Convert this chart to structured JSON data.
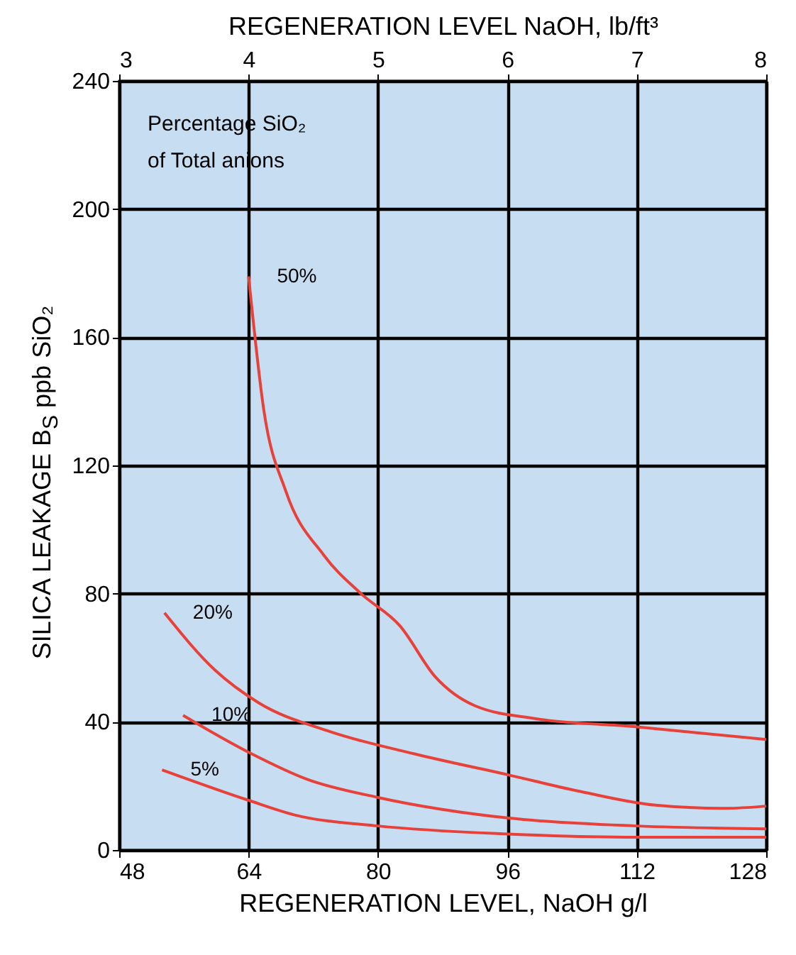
{
  "chart_data": {
    "type": "line",
    "xlabel": "REGENERATION LEVEL, NaOH g/l",
    "x2label": "REGENERATION LEVEL NaOH, lb/ft³",
    "ylabel": "SILICA LEAKAGE B$_{S}$ ppb SiO₂",
    "xlim": [
      48,
      128
    ],
    "xticks": [
      48,
      64,
      80,
      96,
      112,
      128
    ],
    "x2lim": [
      3,
      8
    ],
    "x2ticks": [
      3,
      4,
      5,
      6,
      7,
      8
    ],
    "ylim": [
      0,
      240
    ],
    "yticks": [
      0,
      40,
      80,
      120,
      160,
      200,
      240
    ],
    "grid": true,
    "series": [
      {
        "name": "50%",
        "color": "#e8413a",
        "x": [
          64,
          65.9,
          68.6,
          73.3,
          77.9,
          82.7,
          87.1,
          92,
          99.4,
          111.6,
          128
        ],
        "values": [
          179,
          137,
          112,
          92,
          80,
          70,
          54,
          45,
          41,
          38.5,
          34.5
        ]
      },
      {
        "name": "20%",
        "color": "#e8413a",
        "x": [
          53.6,
          59.9,
          65.2,
          74,
          84.5,
          96,
          105.5,
          114.3,
          123,
          128
        ],
        "values": [
          74,
          56,
          46,
          37,
          30,
          23.5,
          18,
          14,
          13,
          13.7
        ]
      },
      {
        "name": "10%",
        "color": "#e8413a",
        "x": [
          55.9,
          64,
          71.3,
          80,
          96,
          112,
          128
        ],
        "values": [
          42,
          30.5,
          22,
          16.4,
          10,
          7.5,
          6.6
        ]
      },
      {
        "name": "5%",
        "color": "#e8413a",
        "x": [
          53.3,
          64,
          69.6,
          80,
          96,
          112,
          128
        ],
        "values": [
          25,
          15.5,
          11,
          7.5,
          5,
          4,
          4
        ]
      }
    ],
    "annotations": [
      "Percentage SiO₂",
      "of Total anions"
    ]
  }
}
